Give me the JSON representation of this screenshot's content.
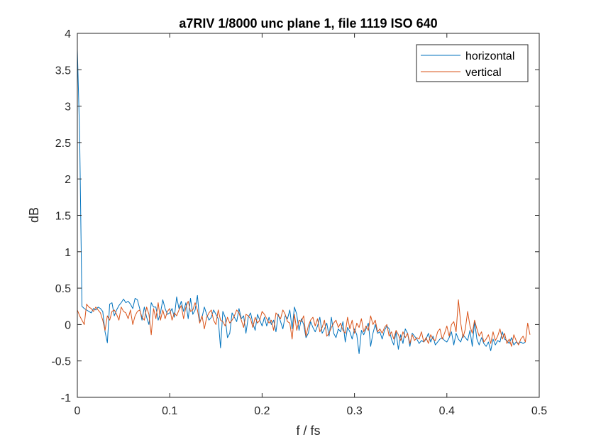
{
  "chart_data": {
    "type": "line",
    "title": "a7RIV 1/8000 unc plane 1, file 1119 ISO 640",
    "xlabel": "f / fs",
    "ylabel": "dB",
    "xlim": [
      0,
      0.5
    ],
    "ylim": [
      -1,
      4
    ],
    "x_ticks": [
      "0",
      "0.1",
      "0.2",
      "0.3",
      "0.4",
      "0.5"
    ],
    "y_ticks": [
      "-1",
      "-0.5",
      "0",
      "0.5",
      "1",
      "1.5",
      "2",
      "2.5",
      "3",
      "3.5",
      "4"
    ],
    "grid": false,
    "legend_position": "top-right",
    "x_start": 0,
    "x_step": 0.0025,
    "series": [
      {
        "name": "horizontal",
        "color": "#0072BD",
        "values": [
          3.78,
          2.6,
          0.25,
          0.22,
          0.2,
          0.18,
          0.16,
          0.22,
          0.2,
          0.24,
          0.22,
          0.18,
          -0.1,
          -0.25,
          0.28,
          0.3,
          0.12,
          0.2,
          0.26,
          0.3,
          0.35,
          0.3,
          0.32,
          0.28,
          0.22,
          0.36,
          0.34,
          0.22,
          0.06,
          0.24,
          0.1,
          0.0,
          0.3,
          0.24,
          0.24,
          0.06,
          0.16,
          0.34,
          0.22,
          0.14,
          0.16,
          0.22,
          0.1,
          0.38,
          0.22,
          0.32,
          0.18,
          0.3,
          0.08,
          0.36,
          0.14,
          0.2,
          0.4,
          0.04,
          0.1,
          0.24,
          0.14,
          0.06,
          0.1,
          0.2,
          0.14,
          0.08,
          -0.32,
          0.18,
          0.1,
          -0.18,
          -0.12,
          0.16,
          0.1,
          0.04,
          0.22,
          0.08,
          0.12,
          -0.12,
          0.1,
          0.16,
          0.02,
          -0.08,
          0.14,
          0.06,
          -0.02,
          0.1,
          -0.02,
          0.1,
          0.0,
          0.06,
          -0.1,
          0.14,
          0.04,
          -0.06,
          0.12,
          0.08,
          0.2,
          -0.06,
          0.24,
          0.14,
          -0.08,
          0.08,
          0.0,
          -0.18,
          -0.12,
          0.04,
          -0.04,
          -0.1,
          -0.02,
          0.1,
          -0.12,
          -0.06,
          0.02,
          -0.16,
          0.1,
          -0.12,
          -0.18,
          -0.06,
          -0.1,
          0.04,
          -0.24,
          -0.04,
          -0.1,
          -0.2,
          -0.06,
          -0.14,
          -0.4,
          -0.08,
          -0.14,
          -0.06,
          0.02,
          -0.3,
          -0.12,
          0.0,
          -0.12,
          -0.1,
          -0.2,
          -0.08,
          -0.02,
          -0.06,
          -0.2,
          -0.28,
          -0.1,
          -0.34,
          -0.14,
          -0.26,
          -0.06,
          -0.12,
          -0.3,
          -0.12,
          -0.16,
          -0.2,
          -0.26,
          -0.22,
          -0.24,
          -0.2,
          -0.12,
          -0.24,
          -0.16,
          -0.28,
          -0.24,
          -0.2,
          -0.18,
          -0.22,
          -0.24,
          -0.18,
          -0.1,
          -0.28,
          -0.12,
          -0.2,
          -0.24,
          -0.14,
          -0.18,
          -0.22,
          -0.08,
          -0.3,
          0.04,
          -0.2,
          -0.28,
          -0.18,
          -0.26,
          -0.3,
          -0.24,
          -0.36,
          -0.2,
          -0.28,
          -0.22,
          -0.24,
          -0.1,
          -0.2,
          -0.22,
          -0.26,
          -0.18,
          -0.28,
          -0.24,
          -0.26,
          -0.24,
          -0.26,
          -0.24
        ]
      },
      {
        "name": "vertical",
        "color": "#D95319",
        "values": [
          0.2,
          0.12,
          0.06,
          0.0,
          0.28,
          0.24,
          0.22,
          0.18,
          0.24,
          0.2,
          0.16,
          0.06,
          -0.08,
          0.12,
          0.06,
          0.18,
          0.2,
          0.14,
          0.06,
          0.24,
          0.18,
          0.16,
          0.08,
          0.2,
          0.0,
          0.12,
          0.18,
          0.2,
          0.1,
          0.06,
          0.24,
          0.14,
          -0.14,
          0.22,
          0.08,
          0.3,
          0.06,
          0.2,
          0.08,
          0.18,
          0.22,
          0.06,
          0.16,
          0.12,
          0.2,
          0.26,
          0.08,
          0.24,
          0.32,
          0.18,
          0.2,
          0.3,
          0.2,
          0.02,
          0.12,
          -0.06,
          0.1,
          0.16,
          0.2,
          0.06,
          0.0,
          0.2,
          0.06,
          0.04,
          -0.02,
          0.1,
          0.02,
          0.06,
          0.12,
          0.2,
          0.16,
          0.06,
          -0.04,
          0.14,
          0.12,
          0.08,
          -0.04,
          0.1,
          0.02,
          0.06,
          0.18,
          0.14,
          0.08,
          0.02,
          0.06,
          -0.08,
          0.16,
          0.12,
          0.08,
          0.2,
          0.14,
          0.04,
          0.02,
          -0.2,
          0.14,
          -0.08,
          0.06,
          0.04,
          0.12,
          -0.16,
          -0.02,
          0.06,
          0.1,
          -0.02,
          0.08,
          -0.1,
          -0.04,
          0.06,
          -0.16,
          -0.12,
          -0.04,
          0.02,
          0.06,
          -0.04,
          0.02,
          -0.08,
          -0.12,
          0.1,
          -0.06,
          0.06,
          -0.12,
          0.02,
          -0.04,
          0.08,
          -0.1,
          -0.02,
          -0.08,
          0.12,
          0.0,
          0.06,
          -0.1,
          -0.06,
          -0.12,
          -0.04,
          0.0,
          -0.16,
          -0.1,
          -0.2,
          -0.08,
          -0.14,
          -0.22,
          -0.1,
          -0.18,
          -0.12,
          -0.26,
          -0.14,
          -0.22,
          -0.18,
          -0.2,
          -0.1,
          -0.24,
          -0.18,
          -0.26,
          -0.14,
          -0.2,
          -0.22,
          -0.1,
          -0.06,
          -0.2,
          -0.12,
          -0.02,
          -0.16,
          0.0,
          0.04,
          -0.1,
          0.34,
          0.02,
          -0.18,
          -0.06,
          0.18,
          -0.02,
          -0.12,
          0.06,
          -0.06,
          -0.16,
          -0.1,
          -0.24,
          -0.2,
          -0.14,
          -0.26,
          -0.1,
          -0.22,
          -0.16,
          -0.06,
          -0.2,
          -0.12,
          -0.26,
          -0.2,
          -0.3,
          -0.14,
          -0.22,
          -0.28,
          -0.2,
          -0.16,
          -0.24,
          0.02,
          -0.14
        ]
      }
    ]
  }
}
